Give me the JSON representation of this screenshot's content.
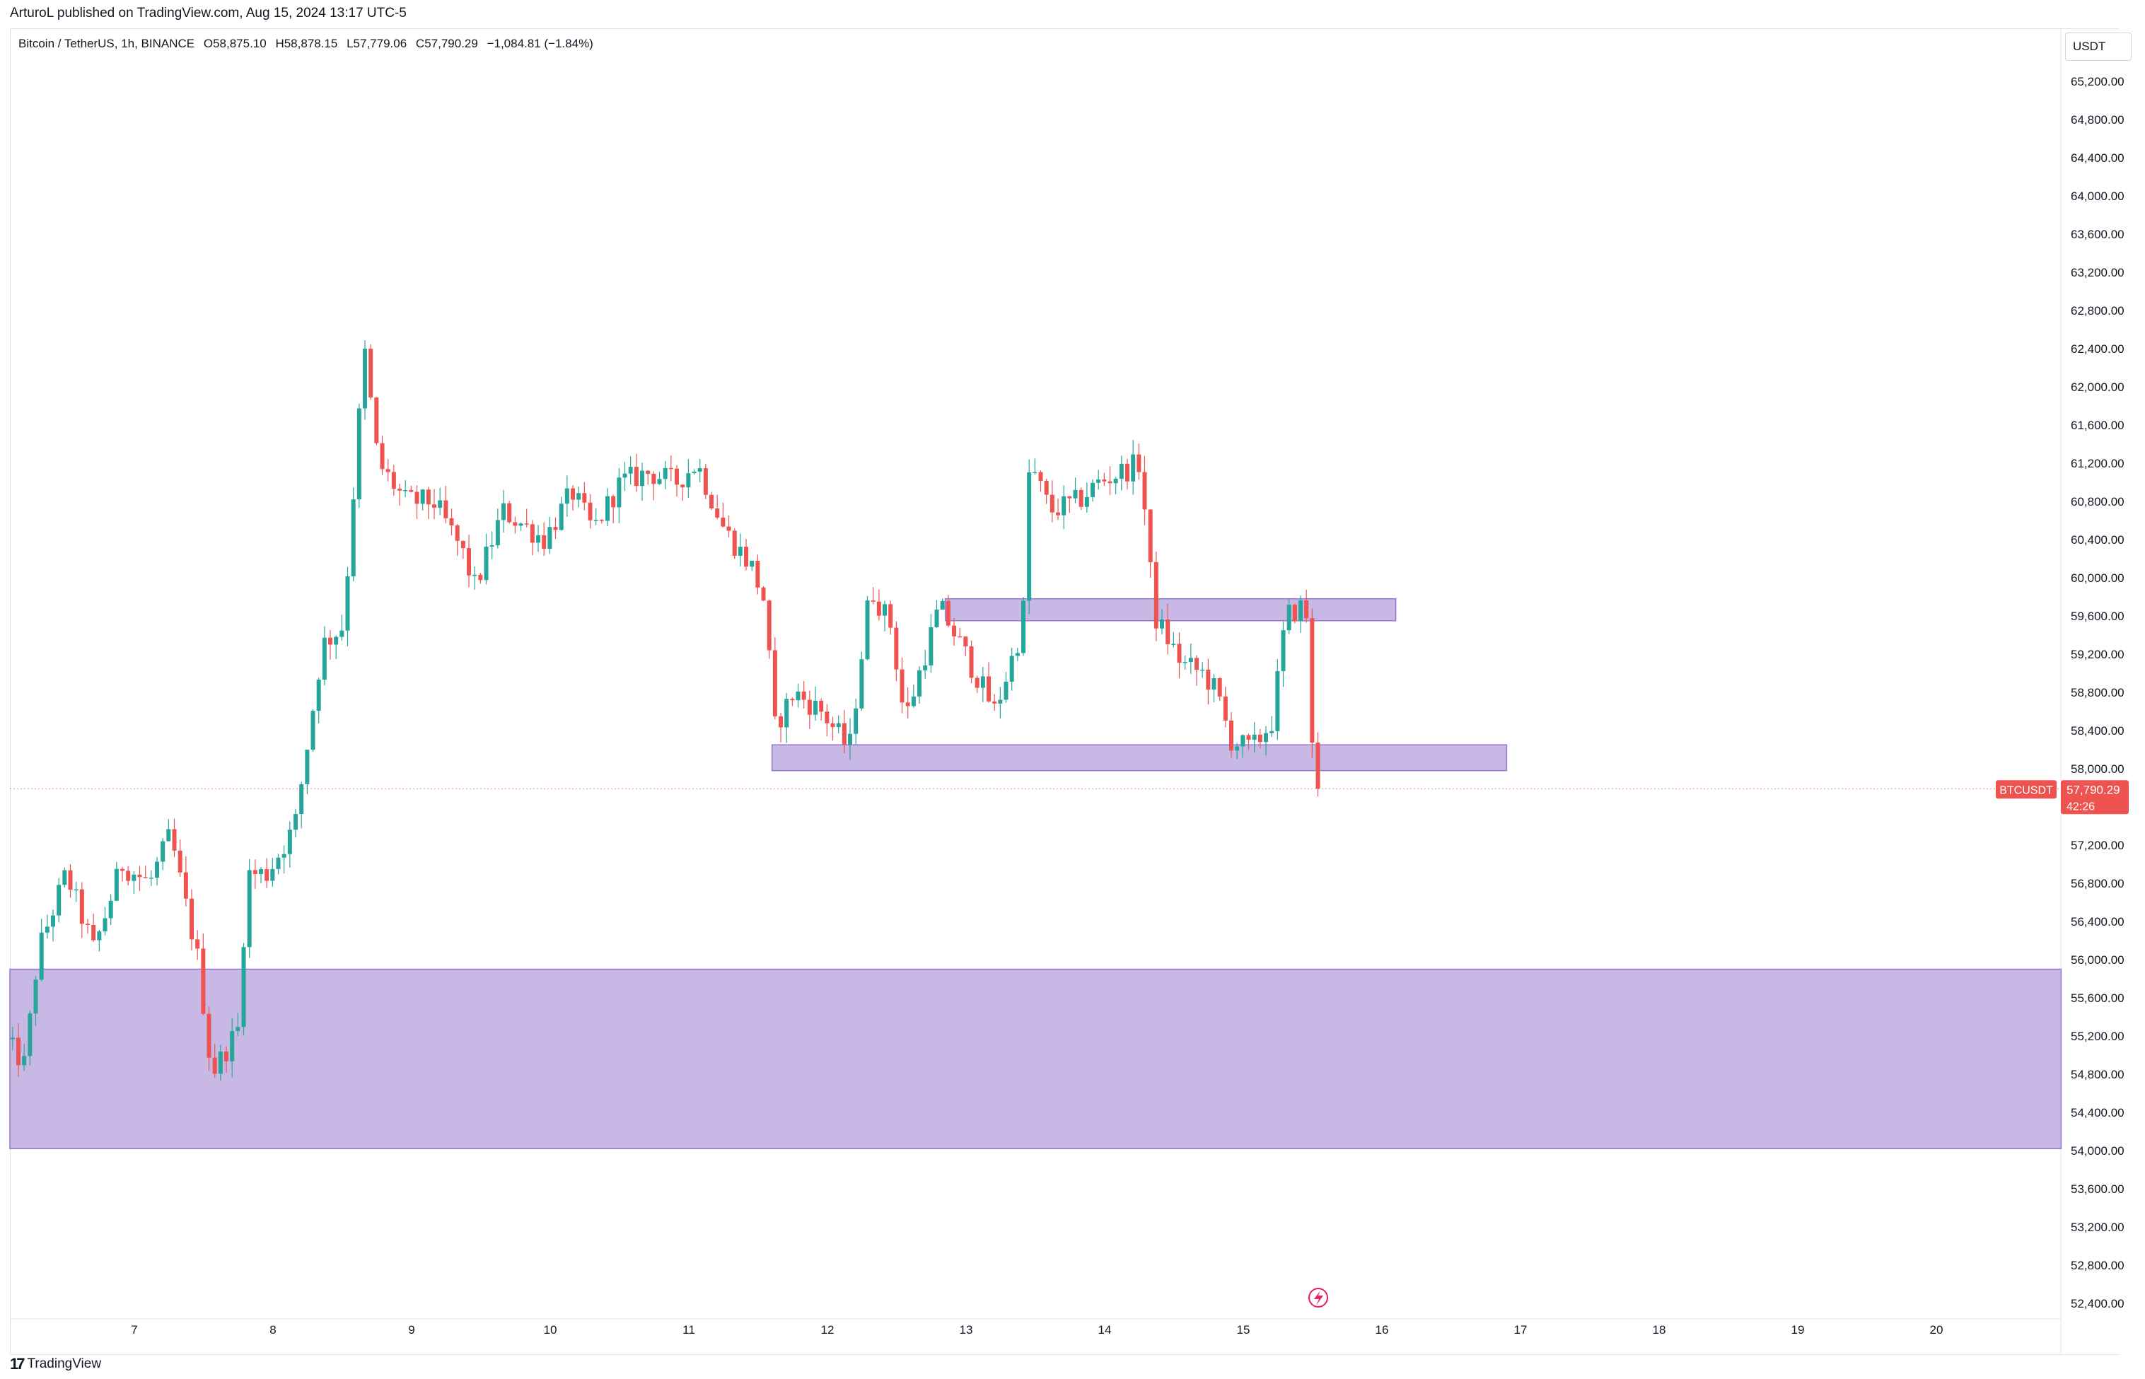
{
  "header": {
    "publisher": "ArturoL published on TradingView.com, Aug 15, 2024 13:17 UTC-5"
  },
  "legend": {
    "symbol": "Bitcoin / TetherUS, 1h, BINANCE",
    "open": "O58,875.10",
    "high": "H58,878.15",
    "low": "L57,779.06",
    "close": "C57,790.29",
    "change": "−1,084.81 (−1.84%)"
  },
  "price_axis": {
    "currency": "USDT",
    "current_symbol": "BTCUSDT",
    "current_price": "57,790.29",
    "countdown": "42:26"
  },
  "footer": {
    "logo": "TradingView"
  },
  "colors": {
    "up": "#26a69a",
    "down": "#ef5350",
    "zone_fill": "#b39ddb",
    "zone_border": "#9575cd",
    "grid": "#f0f3fa",
    "text": "#131722"
  },
  "chart_data": {
    "type": "candlestick",
    "title": "Bitcoin / TetherUS, 1h, BINANCE",
    "xlabel": "",
    "ylabel": "",
    "grid": false,
    "ylim": [
      52200,
      65500
    ],
    "y_ticks": [
      52400,
      52800,
      53200,
      53600,
      54000,
      54400,
      54800,
      55200,
      55600,
      56000,
      56400,
      56800,
      57200,
      57600,
      58000,
      58400,
      58800,
      59200,
      59600,
      60000,
      60400,
      60800,
      61200,
      61600,
      62000,
      62400,
      62800,
      63200,
      63600,
      64000,
      64400,
      64800,
      65200
    ],
    "x_range_days": [
      6.08,
      20.9
    ],
    "x_ticks": [
      {
        "day": 7,
        "label": "7"
      },
      {
        "day": 8,
        "label": "8"
      },
      {
        "day": 9,
        "label": "9"
      },
      {
        "day": 10,
        "label": "10"
      },
      {
        "day": 11,
        "label": "11"
      },
      {
        "day": 12,
        "label": "12"
      },
      {
        "day": 13,
        "label": "13"
      },
      {
        "day": 14,
        "label": "14"
      },
      {
        "day": 15,
        "label": "15"
      },
      {
        "day": 16,
        "label": "16"
      },
      {
        "day": 17,
        "label": "17"
      },
      {
        "day": 18,
        "label": "18"
      },
      {
        "day": 19,
        "label": "19"
      },
      {
        "day": 20,
        "label": "20"
      }
    ],
    "zones": [
      {
        "name": "upper-resistance-zone",
        "x_start_day": 12.85,
        "x_end_day": 16.1,
        "y_low": 59550,
        "y_high": 59780
      },
      {
        "name": "mid-support-zone",
        "x_start_day": 11.6,
        "x_end_day": 16.9,
        "y_low": 57980,
        "y_high": 58250
      },
      {
        "name": "demand-zone",
        "x_start_day": 6.08,
        "x_end_day": 20.9,
        "y_low": 54020,
        "y_high": 55900
      }
    ],
    "anchors": [
      {
        "day": 6.08,
        "price": 55200
      },
      {
        "day": 6.25,
        "price": 54900
      },
      {
        "day": 6.35,
        "price": 56100
      },
      {
        "day": 6.55,
        "price": 56900
      },
      {
        "day": 6.75,
        "price": 56100
      },
      {
        "day": 6.95,
        "price": 57000
      },
      {
        "day": 7.15,
        "price": 56800
      },
      {
        "day": 7.3,
        "price": 57300
      },
      {
        "day": 7.5,
        "price": 56000
      },
      {
        "day": 7.6,
        "price": 54800
      },
      {
        "day": 7.8,
        "price": 55300
      },
      {
        "day": 7.85,
        "price": 56900
      },
      {
        "day": 8.0,
        "price": 56900
      },
      {
        "day": 8.2,
        "price": 57400
      },
      {
        "day": 8.4,
        "price": 59300
      },
      {
        "day": 8.55,
        "price": 59500
      },
      {
        "day": 8.7,
        "price": 62400
      },
      {
        "day": 8.8,
        "price": 61200
      },
      {
        "day": 9.0,
        "price": 60800
      },
      {
        "day": 9.2,
        "price": 60800
      },
      {
        "day": 9.4,
        "price": 60300
      },
      {
        "day": 9.5,
        "price": 59900
      },
      {
        "day": 9.7,
        "price": 60700
      },
      {
        "day": 10.0,
        "price": 60400
      },
      {
        "day": 10.2,
        "price": 60900
      },
      {
        "day": 10.35,
        "price": 60500
      },
      {
        "day": 10.55,
        "price": 61000
      },
      {
        "day": 10.75,
        "price": 61100
      },
      {
        "day": 10.95,
        "price": 61000
      },
      {
        "day": 11.1,
        "price": 61200
      },
      {
        "day": 11.3,
        "price": 60500
      },
      {
        "day": 11.5,
        "price": 60100
      },
      {
        "day": 11.6,
        "price": 59700
      },
      {
        "day": 11.65,
        "price": 58400
      },
      {
        "day": 11.8,
        "price": 58800
      },
      {
        "day": 12.0,
        "price": 58600
      },
      {
        "day": 12.2,
        "price": 58200
      },
      {
        "day": 12.35,
        "price": 59900
      },
      {
        "day": 12.5,
        "price": 59500
      },
      {
        "day": 12.6,
        "price": 58500
      },
      {
        "day": 12.85,
        "price": 59700
      },
      {
        "day": 13.0,
        "price": 59300
      },
      {
        "day": 13.25,
        "price": 58600
      },
      {
        "day": 13.45,
        "price": 59500
      },
      {
        "day": 13.5,
        "price": 61200
      },
      {
        "day": 13.65,
        "price": 60700
      },
      {
        "day": 13.85,
        "price": 60800
      },
      {
        "day": 14.0,
        "price": 61000
      },
      {
        "day": 14.3,
        "price": 61200
      },
      {
        "day": 14.4,
        "price": 59600
      },
      {
        "day": 14.6,
        "price": 59100
      },
      {
        "day": 14.75,
        "price": 59000
      },
      {
        "day": 14.85,
        "price": 58800
      },
      {
        "day": 14.95,
        "price": 58300
      },
      {
        "day": 15.1,
        "price": 58200
      },
      {
        "day": 15.25,
        "price": 58500
      },
      {
        "day": 15.35,
        "price": 59600
      },
      {
        "day": 15.47,
        "price": 59700
      },
      {
        "day": 15.5,
        "price": 59600
      },
      {
        "day": 15.55,
        "price": 57790
      }
    ]
  }
}
